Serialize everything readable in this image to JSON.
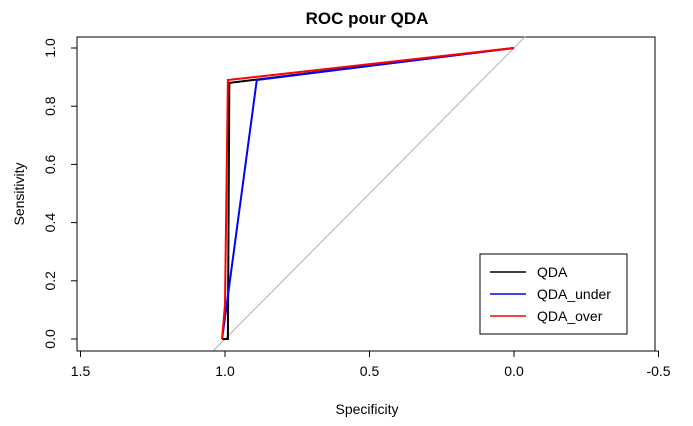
{
  "chart_data": {
    "type": "line",
    "title": "ROC pour QDA",
    "xlabel": "Specificity",
    "ylabel": "Sensitivity",
    "xlim": [
      1.5,
      -0.5
    ],
    "ylim": [
      0.0,
      1.0
    ],
    "x_ticks": [
      1.5,
      1.0,
      0.5,
      0.0,
      -0.5
    ],
    "x_tick_labels": [
      "1.5",
      "1.0",
      "0.5",
      "0.0",
      "-0.5"
    ],
    "y_ticks": [
      0.0,
      0.2,
      0.4,
      0.6,
      0.8,
      1.0
    ],
    "y_tick_labels": [
      "0.0",
      "0.2",
      "0.4",
      "0.6",
      "0.8",
      "1.0"
    ],
    "grid": false,
    "legend_position": "bottom-right",
    "reference_line": {
      "color": "#b0b0b0",
      "from": [
        1.0,
        0.0
      ],
      "to": [
        0.0,
        1.0
      ]
    },
    "series": [
      {
        "name": "QDA",
        "color": "#000000",
        "x": [
          1.01,
          0.99,
          0.985,
          0.0
        ],
        "y": [
          0.0,
          0.0,
          0.88,
          1.0
        ]
      },
      {
        "name": "QDA_under",
        "color": "#0000ff",
        "x": [
          1.01,
          0.89,
          0.0
        ],
        "y": [
          0.0,
          0.89,
          1.0
        ]
      },
      {
        "name": "QDA_over",
        "color": "#ff0000",
        "x": [
          1.01,
          1.0,
          0.99,
          0.0
        ],
        "y": [
          0.0,
          0.12,
          0.89,
          1.0
        ]
      }
    ]
  }
}
